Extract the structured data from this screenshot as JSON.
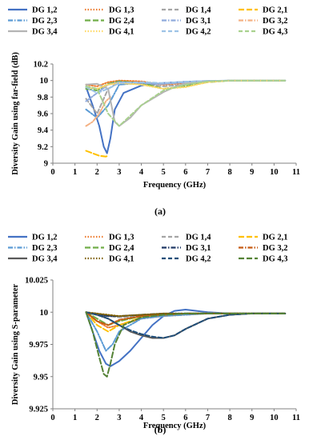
{
  "chart_data": [
    {
      "type": "line",
      "panel_label": "(a)",
      "xlabel": "Frequency (GHz)",
      "ylabel": "Diversity Gain using far-field (dB)",
      "xlim": [
        0,
        11
      ],
      "ylim": [
        9,
        10.2
      ],
      "xticks": [
        "0",
        "1",
        "2",
        "3",
        "4",
        "5",
        "6",
        "7",
        "8",
        "9",
        "10",
        "11"
      ],
      "yticks": [
        "9",
        "9.2",
        "9.4",
        "9.6",
        "9.8",
        "10",
        "10.2"
      ],
      "grid": false,
      "legend_position": "top",
      "series": [
        {
          "name": "DG 1,2",
          "color": "#4472c4",
          "dash": "solid",
          "x": [
            1.5,
            1.8,
            2.1,
            2.3,
            2.45,
            2.6,
            2.8,
            3.2,
            4,
            5,
            6,
            7,
            8,
            9,
            10,
            10.5
          ],
          "y": [
            9.92,
            9.7,
            9.45,
            9.2,
            9.12,
            9.3,
            9.65,
            9.85,
            9.94,
            9.97,
            9.985,
            9.995,
            9.998,
            9.999,
            9.999,
            9.999
          ]
        },
        {
          "name": "DG 1,3",
          "color": "#ed7d31",
          "dash": "dot",
          "x": [
            1.5,
            2,
            2.5,
            3,
            4,
            5,
            6,
            7,
            8,
            9,
            10,
            10.5
          ],
          "y": [
            9.95,
            9.93,
            9.98,
            10.0,
            9.99,
            9.95,
            9.97,
            9.99,
            9.999,
            9.999,
            9.999,
            9.999
          ]
        },
        {
          "name": "DG 1,4",
          "color": "#a5a5a5",
          "dash": "dash",
          "x": [
            1.5,
            2,
            2.5,
            3,
            4,
            5,
            6,
            7,
            8,
            9,
            10,
            10.5
          ],
          "y": [
            9.78,
            9.6,
            9.9,
            9.98,
            9.96,
            9.93,
            9.95,
            9.99,
            9.999,
            9.999,
            9.999,
            9.999
          ]
        },
        {
          "name": "DG 2,1",
          "color": "#ffc000",
          "dash": "longdash",
          "x": [
            1.5,
            1.8,
            2.1,
            2.4,
            2.5
          ],
          "y": [
            9.15,
            9.12,
            9.09,
            9.08,
            9.09
          ]
        },
        {
          "name": "DG 2,3",
          "color": "#5b9bd5",
          "dash": "dashdot",
          "x": [
            1.5,
            2,
            2.5,
            3,
            4,
            5,
            6,
            7,
            8,
            9,
            10,
            10.5
          ],
          "y": [
            9.65,
            9.55,
            9.7,
            9.95,
            9.97,
            9.96,
            9.98,
            9.99,
            9.999,
            9.999,
            9.999,
            9.999
          ]
        },
        {
          "name": "DG 2,4",
          "color": "#70ad47",
          "dash": "longdash",
          "x": [
            1.5,
            2,
            2.5,
            3,
            4,
            5,
            6,
            7,
            8,
            9,
            10,
            10.5
          ],
          "y": [
            9.9,
            9.88,
            9.96,
            9.99,
            9.97,
            9.9,
            9.93,
            9.98,
            9.999,
            9.999,
            9.999,
            9.999
          ]
        },
        {
          "name": "DG 3,1",
          "color": "#8faadc",
          "dash": "dashdot",
          "x": [
            1.5,
            2,
            2.5,
            3,
            4,
            5,
            6,
            7,
            8,
            9,
            10,
            10.5
          ],
          "y": [
            9.75,
            9.85,
            9.95,
            9.98,
            9.97,
            9.96,
            9.98,
            9.995,
            9.999,
            9.999,
            9.999,
            9.999
          ]
        },
        {
          "name": "DG 3,2",
          "color": "#f4b183",
          "dash": "dashdot",
          "x": [
            1.5,
            1.8,
            2.1,
            2.4,
            2.6
          ],
          "y": [
            9.45,
            9.5,
            9.6,
            9.75,
            9.8
          ]
        },
        {
          "name": "DG 3,4",
          "color": "#b4b4b4",
          "dash": "solid",
          "x": [
            1.5,
            2,
            2.5,
            2.8,
            3,
            3.5,
            4,
            5,
            5.5,
            6,
            7,
            8,
            9,
            10,
            10.5
          ],
          "y": [
            9.95,
            9.96,
            9.9,
            9.5,
            9.45,
            9.55,
            9.7,
            9.86,
            9.92,
            9.97,
            9.99,
            9.999,
            9.999,
            9.999,
            9.999
          ]
        },
        {
          "name": "DG 4,1",
          "color": "#ffd966",
          "dash": "dot",
          "x": [
            1.5,
            2,
            2.5,
            3,
            4,
            5,
            6,
            7,
            8,
            9,
            10,
            10.5
          ],
          "y": [
            9.92,
            9.9,
            9.95,
            9.97,
            9.95,
            9.9,
            9.92,
            9.98,
            9.999,
            9.999,
            9.999,
            9.999
          ]
        },
        {
          "name": "DG 4,2",
          "color": "#9dc3e6",
          "dash": "dash",
          "x": [
            1.5,
            2,
            2.5,
            3,
            4,
            5,
            6,
            7,
            8,
            9,
            10,
            10.5
          ],
          "y": [
            9.92,
            9.85,
            9.9,
            9.97,
            9.98,
            9.97,
            9.985,
            9.995,
            9.999,
            9.999,
            9.999,
            9.999
          ]
        },
        {
          "name": "DG 4,3",
          "color": "#a9d18e",
          "dash": "dash",
          "x": [
            1.5,
            2,
            2.5,
            3,
            4,
            5,
            6,
            7,
            8,
            9,
            10,
            10.5
          ],
          "y": [
            9.93,
            9.9,
            9.6,
            9.45,
            9.7,
            9.88,
            9.95,
            9.99,
            9.999,
            9.999,
            9.999,
            9.999
          ]
        }
      ]
    },
    {
      "type": "line",
      "panel_label": "(b)",
      "xlabel": "Frequency (GHz)",
      "ylabel": "Diversity Gain using S-parameter",
      "xlim": [
        0,
        11
      ],
      "ylim": [
        9.925,
        10.025
      ],
      "xticks": [
        "0",
        "1",
        "2",
        "3",
        "4",
        "5",
        "6",
        "7",
        "8",
        "9",
        "10",
        "11"
      ],
      "yticks": [
        "9.925",
        "9.95",
        "9.975",
        "10",
        "10.025"
      ],
      "grid": false,
      "legend_position": "top",
      "series": [
        {
          "name": "DG 1,2",
          "color": "#4472c4",
          "dash": "solid",
          "x": [
            1.5,
            1.8,
            2.1,
            2.4,
            2.6,
            3,
            3.5,
            4,
            4.5,
            5,
            5.5,
            6,
            6.5,
            7,
            8,
            9,
            10,
            10.5
          ],
          "y": [
            10.0,
            9.985,
            9.97,
            9.96,
            9.958,
            9.962,
            9.97,
            9.98,
            9.99,
            9.997,
            10.001,
            10.002,
            10.001,
            10.0,
            9.999,
            9.999,
            9.999,
            9.999
          ]
        },
        {
          "name": "DG 1,3",
          "color": "#ed7d31",
          "dash": "dot",
          "x": [
            1.5,
            2,
            2.5,
            3,
            4,
            5,
            6,
            7,
            8,
            9,
            10,
            10.5
          ],
          "y": [
            10.0,
            9.993,
            9.988,
            9.99,
            9.995,
            9.997,
            9.998,
            9.999,
            9.999,
            9.999,
            9.999,
            9.999
          ]
        },
        {
          "name": "DG 1,4",
          "color": "#a5a5a5",
          "dash": "dash",
          "x": [
            1.5,
            2,
            2.5,
            3,
            4,
            5,
            6,
            7,
            8,
            9,
            10,
            10.5
          ],
          "y": [
            10.0,
            9.999,
            9.997,
            9.996,
            9.997,
            9.998,
            9.999,
            9.999,
            9.999,
            9.999,
            9.999,
            9.999
          ]
        },
        {
          "name": "DG 2,1",
          "color": "#ffc000",
          "dash": "longdash",
          "x": [
            1.5,
            2,
            2.5,
            3,
            4,
            5,
            6,
            7,
            8,
            9,
            10,
            10.5
          ],
          "y": [
            10.0,
            9.99,
            9.985,
            9.99,
            9.996,
            9.998,
            9.999,
            9.999,
            9.999,
            9.999,
            9.999,
            9.999
          ]
        },
        {
          "name": "DG 2,3",
          "color": "#5b9bd5",
          "dash": "dashdot",
          "x": [
            1.5,
            2,
            2.4,
            2.7,
            3,
            4,
            5,
            6,
            7,
            8,
            9,
            10,
            10.5
          ],
          "y": [
            10.0,
            9.985,
            9.97,
            9.975,
            9.985,
            9.995,
            9.997,
            9.998,
            9.999,
            9.999,
            9.999,
            9.999,
            9.999
          ]
        },
        {
          "name": "DG 2,4",
          "color": "#70ad47",
          "dash": "longdash",
          "x": [
            1.5,
            2,
            2.5,
            3,
            4,
            5,
            6,
            7,
            8,
            9,
            10,
            10.5
          ],
          "y": [
            10.0,
            9.995,
            9.99,
            9.993,
            9.997,
            9.998,
            9.999,
            9.999,
            9.999,
            9.999,
            9.999,
            9.999
          ]
        },
        {
          "name": "DG 3,1",
          "color": "#1f3864",
          "dash": "dashdot",
          "x": [
            1.5,
            2,
            2.5,
            3,
            4,
            5,
            6,
            7,
            8,
            9,
            10,
            10.5
          ],
          "y": [
            10.0,
            9.998,
            9.997,
            9.997,
            9.998,
            9.999,
            9.999,
            9.999,
            9.999,
            9.999,
            9.999,
            9.999
          ]
        },
        {
          "name": "DG 3,2",
          "color": "#c55a11",
          "dash": "dashdot",
          "x": [
            1.5,
            2,
            2.5,
            3,
            4,
            5,
            6,
            7,
            8,
            9,
            10,
            10.5
          ],
          "y": [
            10.0,
            9.993,
            9.99,
            9.994,
            9.997,
            9.998,
            9.999,
            9.999,
            9.999,
            9.999,
            9.999,
            9.999
          ]
        },
        {
          "name": "DG 3,4",
          "color": "#595959",
          "dash": "solid",
          "x": [
            1.5,
            2,
            2.5,
            3,
            3.5,
            4,
            4.5,
            5,
            5.5,
            6,
            7,
            8,
            9,
            10,
            10.5
          ],
          "y": [
            10.0,
            9.998,
            9.995,
            9.99,
            9.985,
            9.982,
            9.98,
            9.98,
            9.982,
            9.987,
            9.995,
            9.998,
            9.999,
            9.999,
            9.999
          ]
        },
        {
          "name": "DG 4,1",
          "color": "#7f6000",
          "dash": "dot",
          "x": [
            1.5,
            2,
            2.5,
            3,
            4,
            5,
            6,
            7,
            8,
            9,
            10,
            10.5
          ],
          "y": [
            10.0,
            9.999,
            9.998,
            9.997,
            9.998,
            9.999,
            9.999,
            9.999,
            9.999,
            9.999,
            9.999,
            9.999
          ]
        },
        {
          "name": "DG 4,2",
          "color": "#1f4e79",
          "dash": "dash",
          "x": [
            1.5,
            2,
            2.5,
            3,
            3.5,
            4,
            4.5,
            5,
            5.5,
            6,
            7,
            8,
            9,
            10,
            10.5
          ],
          "y": [
            10.0,
            9.998,
            9.995,
            9.99,
            9.986,
            9.983,
            9.981,
            9.98,
            9.982,
            9.987,
            9.995,
            9.998,
            9.999,
            9.999,
            9.999
          ]
        },
        {
          "name": "DG 4,3",
          "color": "#548235",
          "dash": "longdash",
          "x": [
            1.5,
            1.8,
            2.1,
            2.3,
            2.45,
            2.6,
            2.8,
            3.2,
            4,
            5,
            6,
            7,
            8,
            9,
            10,
            10.5
          ],
          "y": [
            10.0,
            9.985,
            9.965,
            9.952,
            9.95,
            9.96,
            9.975,
            9.99,
            9.996,
            9.998,
            9.999,
            9.999,
            9.999,
            9.999,
            9.999,
            9.999
          ]
        }
      ]
    }
  ]
}
